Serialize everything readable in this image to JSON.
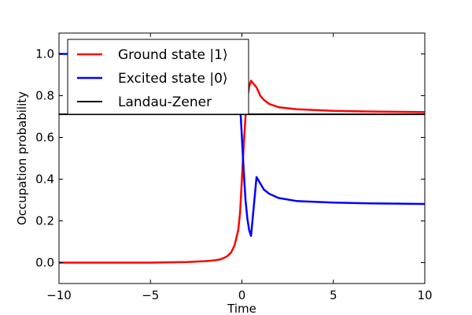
{
  "chart_data": {
    "type": "line",
    "xlabel": "Time",
    "ylabel": "Occupation probability",
    "xlim": [
      -10,
      10
    ],
    "ylim": [
      -0.1,
      1.1
    ],
    "x_ticks": [
      -10,
      -5,
      0,
      5,
      10
    ],
    "x_tick_labels": [
      "−10",
      "−5",
      "0",
      "5",
      "10"
    ],
    "y_ticks": [
      0.0,
      0.2,
      0.4,
      0.6,
      0.8,
      1.0
    ],
    "y_tick_labels": [
      "0.0",
      "0.2",
      "0.4",
      "0.6",
      "0.8",
      "1.0"
    ],
    "grid": false,
    "legend_placement": "upper-left",
    "legend": [
      "Ground state |1⟩",
      "Excited state |0⟩",
      "Landau-Zener"
    ],
    "series": [
      {
        "name": "Ground state |1⟩",
        "color": "#ff0000",
        "x": [
          -10,
          -5,
          -3,
          -2,
          -1.5,
          -1.2,
          -1.0,
          -0.8,
          -0.6,
          -0.4,
          -0.2,
          -0.1,
          0.0,
          0.1,
          0.2,
          0.3,
          0.4,
          0.5,
          0.8,
          1.0,
          1.2,
          1.5,
          2,
          3,
          5,
          7,
          10
        ],
        "values": [
          0.0,
          0.0,
          0.003,
          0.007,
          0.011,
          0.015,
          0.022,
          0.031,
          0.048,
          0.083,
          0.157,
          0.24,
          0.4,
          0.56,
          0.7,
          0.79,
          0.845,
          0.872,
          0.84,
          0.8,
          0.78,
          0.76,
          0.745,
          0.735,
          0.727,
          0.724,
          0.721
        ]
      },
      {
        "name": "Excited state |0⟩",
        "color": "#0000ff",
        "x": [
          -10,
          -5,
          -3,
          -2,
          -1.5,
          -1.2,
          -1.0,
          -0.8,
          -0.6,
          -0.4,
          -0.2,
          -0.1,
          0.0,
          0.1,
          0.2,
          0.3,
          0.4,
          0.5,
          0.8,
          1.0,
          1.2,
          1.5,
          2,
          3,
          5,
          7,
          10
        ],
        "values": [
          1.0,
          1.0,
          0.997,
          0.993,
          0.989,
          0.985,
          0.978,
          0.969,
          0.952,
          0.917,
          0.843,
          0.76,
          0.6,
          0.44,
          0.3,
          0.21,
          0.155,
          0.128,
          0.41,
          0.38,
          0.35,
          0.33,
          0.31,
          0.295,
          0.288,
          0.284,
          0.281
        ]
      },
      {
        "name": "Landau-Zener",
        "color": "#000000",
        "x": [
          -10,
          10
        ],
        "values": [
          0.711,
          0.711
        ]
      }
    ]
  }
}
